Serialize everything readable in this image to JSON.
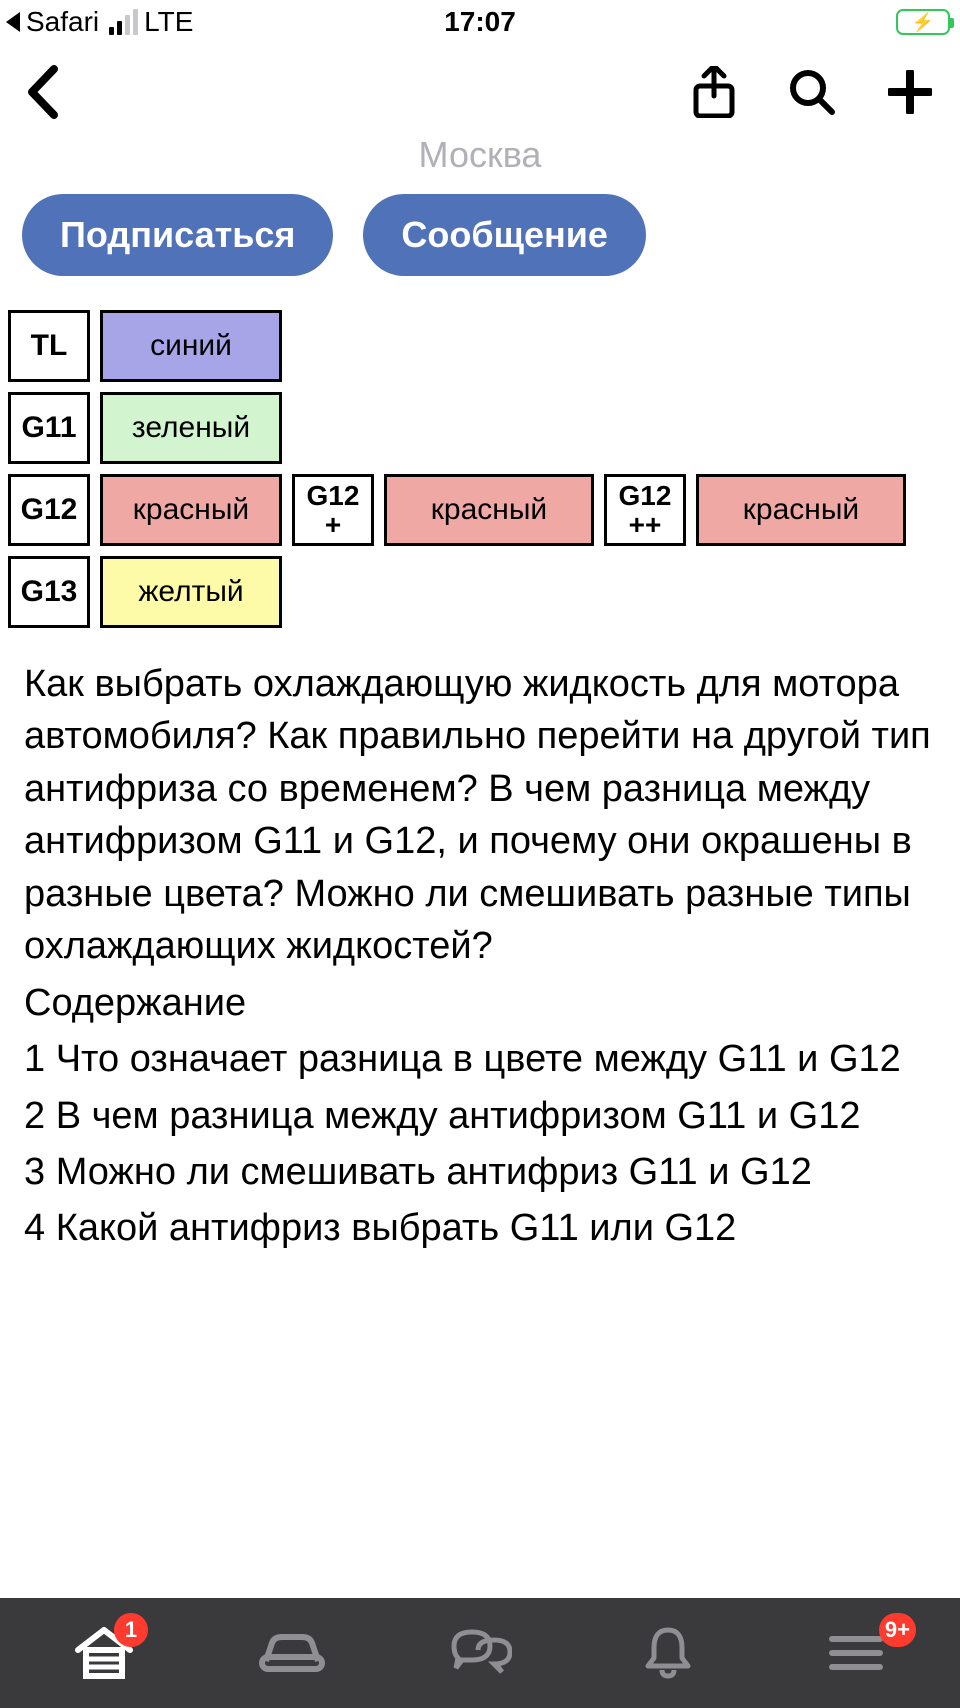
{
  "status_bar": {
    "back_app": "Safari",
    "carrier": "LTE",
    "time": "17:07",
    "battery_color": "#34c759"
  },
  "header": {
    "subtitle": "Москва"
  },
  "actions": {
    "subscribe": "Подписаться",
    "message": "Сообщение",
    "button_bg": "#5072b8",
    "button_fg": "#ffffff"
  },
  "antifreeze_table": {
    "border_color": "#000000",
    "rows": [
      [
        {
          "kind": "code",
          "text": "TL"
        },
        {
          "kind": "color",
          "text": "синий",
          "bg": "#a7a5e8",
          "width": "short"
        }
      ],
      [
        {
          "kind": "code",
          "text": "G11"
        },
        {
          "kind": "color",
          "text": "зеленый",
          "bg": "#d2f4cf",
          "width": "short"
        }
      ],
      [
        {
          "kind": "code",
          "text": "G12"
        },
        {
          "kind": "color",
          "text": "красный",
          "bg": "#efa8a3",
          "width": "short"
        },
        {
          "kind": "code",
          "text": "G12\n+",
          "multi": true
        },
        {
          "kind": "color",
          "text": "красный",
          "bg": "#efa8a3",
          "width": "long"
        },
        {
          "kind": "code",
          "text": "G12\n++",
          "multi": true
        },
        {
          "kind": "color",
          "text": "красный",
          "bg": "#efa8a3",
          "width": "long"
        }
      ],
      [
        {
          "kind": "code",
          "text": "G13"
        },
        {
          "kind": "color",
          "text": "желтый",
          "bg": "#fdfaa8",
          "width": "short"
        }
      ]
    ]
  },
  "article": {
    "intro": "Как выбрать охлаждающую жидкость для мотора автомобиля? Как правильно перейти на другой тип антифриза со временем? В чем разница между антифризом G11 и G12, и почему они окрашены в разные цвета? Можно ли смешивать разные типы охлаждающих жидкостей?",
    "toc_heading": "Содержание",
    "toc": [
      "1 Что означает разница в цвете между G11 и G12",
      "2 В чем разница между антифризом G11 и G12",
      "3 Можно ли смешивать антифриз G11 и G12",
      "4 Какой антифриз выбрать G11 или G12"
    ]
  },
  "tabbar": {
    "bg": "#3a3a3c",
    "icon_active": "#ffffff",
    "icon_inactive": "#8e8e93",
    "badge_bg": "#ff3b30",
    "items": [
      {
        "name": "garage",
        "badge": "1",
        "active": true
      },
      {
        "name": "car",
        "badge": null,
        "active": false
      },
      {
        "name": "chat",
        "badge": null,
        "active": false
      },
      {
        "name": "bell",
        "badge": null,
        "active": false
      },
      {
        "name": "menu",
        "badge": "9+",
        "active": false
      }
    ]
  }
}
